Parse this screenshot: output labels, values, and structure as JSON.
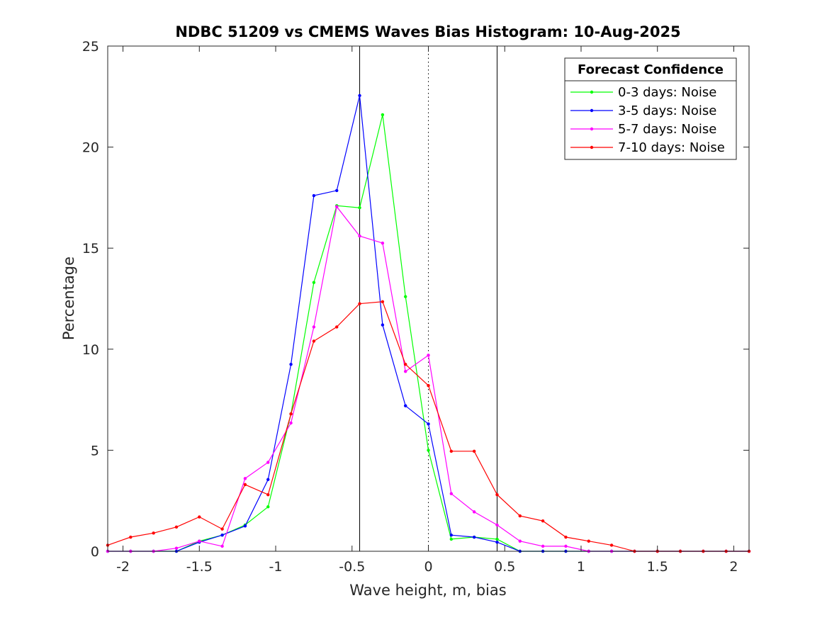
{
  "chart_data": {
    "type": "line",
    "title": "NDBC 51209 vs CMEMS Waves Bias Histogram: 10-Aug-2025",
    "xlabel": "Wave height, m, bias",
    "ylabel": "Percentage",
    "xlim": [
      -2.1,
      2.1
    ],
    "ylim": [
      0,
      25
    ],
    "xticks": [
      -2,
      -1.5,
      -1,
      -0.5,
      0,
      0.5,
      1,
      1.5,
      2
    ],
    "xtick_labels": [
      "-2",
      "-1.5",
      "-1",
      "-0.5",
      "0",
      "0.5",
      "1",
      "1.5",
      "2"
    ],
    "yticks": [
      0,
      5,
      10,
      15,
      20,
      25
    ],
    "ytick_labels": [
      "0",
      "5",
      "10",
      "15",
      "20",
      "25"
    ],
    "grid": false,
    "legend": {
      "title": "Forecast Confidence",
      "position": "top-right"
    },
    "reference_lines": [
      {
        "x": -0.45,
        "style": "solid",
        "color": "#000000"
      },
      {
        "x": 0.45,
        "style": "solid",
        "color": "#000000"
      },
      {
        "x": 0,
        "style": "dotted",
        "color": "#000000"
      }
    ],
    "x": [
      -2.1,
      -1.95,
      -1.8,
      -1.65,
      -1.5,
      -1.35,
      -1.2,
      -1.05,
      -0.9,
      -0.75,
      -0.6,
      -0.45,
      -0.3,
      -0.15,
      0,
      0.15,
      0.3,
      0.45,
      0.6,
      0.75,
      0.9,
      1.05,
      1.2,
      1.35,
      1.5,
      1.65,
      1.8,
      1.95,
      2.1
    ],
    "series": [
      {
        "name": "0-3 days: Noise",
        "color": "#00ff00",
        "values": [
          0,
          0,
          0,
          0,
          0.5,
          0.8,
          1.3,
          2.2,
          6.8,
          13.3,
          17.1,
          17.0,
          21.6,
          12.6,
          5.0,
          0.6,
          0.7,
          0.6,
          0,
          0,
          0,
          0,
          0,
          0,
          0,
          0,
          0,
          0,
          0
        ]
      },
      {
        "name": "3-5 days: Noise",
        "color": "#0000ff",
        "values": [
          0,
          0,
          0,
          0,
          0.45,
          0.8,
          1.25,
          3.55,
          9.25,
          17.6,
          17.85,
          22.55,
          11.2,
          7.2,
          6.3,
          0.8,
          0.7,
          0.45,
          0,
          0,
          0,
          0,
          0,
          0,
          0,
          0,
          0,
          0,
          0
        ]
      },
      {
        "name": "5-7 days: Noise",
        "color": "#ff00ff",
        "values": [
          0,
          0,
          0,
          0.15,
          0.5,
          0.25,
          3.6,
          4.4,
          6.35,
          11.1,
          17.05,
          15.6,
          15.25,
          8.9,
          9.7,
          2.85,
          1.95,
          1.3,
          0.5,
          0.25,
          0.25,
          0,
          0,
          0,
          0,
          0,
          0,
          0,
          0
        ]
      },
      {
        "name": "7-10 days: Noise",
        "color": "#ff0000",
        "values": [
          0.3,
          0.7,
          0.9,
          1.2,
          1.7,
          1.1,
          3.3,
          2.8,
          6.8,
          10.4,
          11.1,
          12.25,
          12.35,
          9.25,
          8.2,
          4.95,
          4.95,
          2.8,
          1.75,
          1.5,
          0.7,
          0.5,
          0.3,
          0,
          0,
          0,
          0,
          0,
          0
        ]
      }
    ]
  }
}
